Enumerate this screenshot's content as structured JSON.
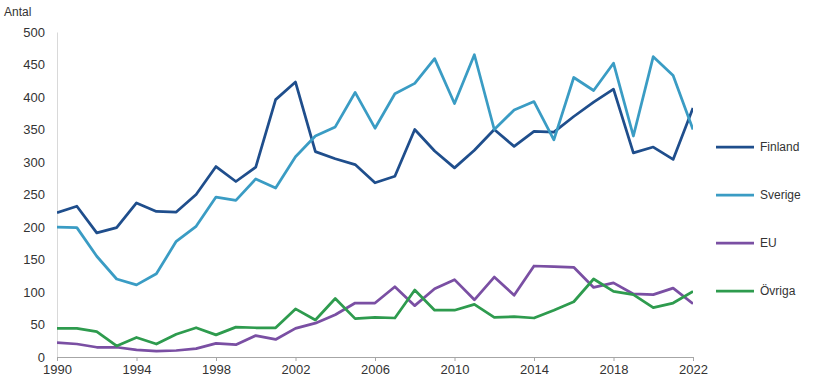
{
  "chart_data": {
    "type": "line",
    "ylabel": "Antal",
    "x": [
      1990,
      1991,
      1992,
      1993,
      1994,
      1995,
      1996,
      1997,
      1998,
      1999,
      2000,
      2001,
      2002,
      2003,
      2004,
      2005,
      2006,
      2007,
      2008,
      2009,
      2010,
      2011,
      2012,
      2013,
      2014,
      2015,
      2016,
      2017,
      2018,
      2019,
      2020,
      2021,
      2022
    ],
    "series": [
      {
        "name": "Finland",
        "color": "#1f4e8c",
        "values": [
          222,
          232,
          191,
          199,
          237,
          224,
          223,
          250,
          293,
          270,
          292,
          396,
          423,
          316,
          305,
          296,
          268,
          278,
          350,
          317,
          291,
          318,
          350,
          324,
          347,
          346,
          370,
          392,
          412,
          314,
          323,
          304,
          383
        ]
      },
      {
        "name": "Sverige",
        "color": "#3a9cc4",
        "values": [
          200,
          199,
          155,
          120,
          111,
          128,
          178,
          201,
          246,
          241,
          274,
          260,
          308,
          340,
          354,
          407,
          352,
          405,
          421,
          459,
          390,
          465,
          350,
          380,
          393,
          334,
          430,
          410,
          452,
          340,
          462,
          433,
          350
        ]
      },
      {
        "name": "EU",
        "color": "#7a4fa3",
        "values": [
          22,
          20,
          15,
          15,
          11,
          9,
          10,
          13,
          21,
          19,
          33,
          27,
          44,
          52,
          65,
          83,
          83,
          108,
          79,
          105,
          119,
          88,
          123,
          95,
          140,
          139,
          138,
          107,
          114,
          97,
          96,
          106,
          82
        ]
      },
      {
        "name": "Övriga",
        "color": "#2e9b4e",
        "values": [
          44,
          44,
          39,
          17,
          30,
          20,
          35,
          45,
          34,
          46,
          45,
          45,
          74,
          57,
          90,
          59,
          61,
          60,
          103,
          72,
          72,
          81,
          61,
          62,
          60,
          72,
          85,
          120,
          101,
          96,
          76,
          83,
          101
        ]
      }
    ],
    "xlim": [
      1990,
      2022
    ],
    "xticks": [
      1990,
      1994,
      1998,
      2002,
      2006,
      2010,
      2014,
      2018,
      2022
    ],
    "ylim": [
      0,
      500
    ],
    "yticks": [
      0,
      50,
      100,
      150,
      200,
      250,
      300,
      350,
      400,
      450,
      500
    ],
    "grid": false,
    "legend": "right"
  }
}
